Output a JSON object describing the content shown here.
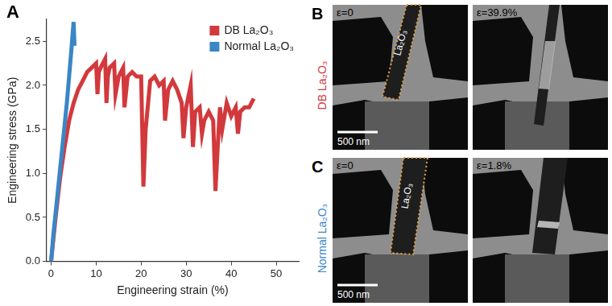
{
  "chart_data": {
    "type": "line",
    "panel_label": "A",
    "x_label": "Engineering strain (%)",
    "y_label": "Engineering stress (GPa)",
    "xlim": [
      -1,
      55
    ],
    "xticks": [
      0,
      10,
      20,
      30,
      40,
      50
    ],
    "ylim": [
      0,
      2.75
    ],
    "yticks": [
      {
        "value": 0,
        "label": "0.0"
      },
      0.5,
      {
        "value": 1,
        "label": "1.0"
      },
      1.5,
      {
        "value": 2,
        "label": "2.0"
      },
      2.5
    ],
    "grid": false,
    "legend": "upper right",
    "marker": "none",
    "series": [
      {
        "name": "DB La₂O₃",
        "color": "#d2393c",
        "x": [
          0,
          1,
          2,
          3,
          4,
          5,
          6,
          7,
          8,
          9,
          10,
          10.3,
          10.6,
          11,
          12,
          12.3,
          12.6,
          13,
          14,
          14.3,
          15,
          16,
          16.3,
          17,
          18,
          19,
          20,
          20.5,
          21,
          22,
          23,
          24,
          25,
          25.3,
          26,
          27,
          28,
          29,
          29.4,
          30,
          31,
          31.5,
          32,
          33,
          33.5,
          34,
          35,
          36,
          36.5,
          37,
          37.5,
          38,
          39,
          40,
          41,
          41.5,
          42,
          43,
          44,
          45
        ],
        "values": [
          0,
          0.5,
          0.95,
          1.3,
          1.6,
          1.8,
          1.95,
          2.05,
          2.15,
          2.2,
          2.25,
          1.9,
          2.15,
          2.2,
          2.3,
          1.8,
          2.1,
          2.2,
          2.25,
          1.9,
          2.1,
          2.2,
          1.75,
          2.1,
          2.15,
          2.1,
          2.1,
          0.85,
          1.5,
          2.05,
          2.1,
          2.0,
          2.05,
          1.6,
          1.95,
          2.05,
          1.95,
          1.8,
          1.4,
          1.75,
          2.0,
          1.3,
          1.7,
          1.75,
          1.45,
          1.6,
          1.7,
          1.6,
          0.8,
          1.3,
          1.75,
          1.5,
          1.8,
          1.65,
          1.75,
          1.45,
          1.7,
          1.75,
          1.75,
          1.85
        ]
      },
      {
        "name": "Normal La₂O₃",
        "color": "#3a86c6",
        "x": [
          0,
          0.5,
          1,
          1.5,
          2,
          2.5,
          3,
          3.5,
          4,
          4.5,
          4.8,
          5,
          5.2
        ],
        "values": [
          0,
          0.3,
          0.55,
          0.8,
          1.05,
          1.3,
          1.55,
          1.8,
          2.1,
          2.4,
          2.6,
          2.72,
          2.45
        ]
      }
    ]
  },
  "image_panels": [
    {
      "label": "B",
      "row_label": "DB La₂O₃",
      "color": "#d2393c",
      "specimen_label": "La₂O₃",
      "scale_bar": "500 nm",
      "frames": [
        {
          "strain_label": "ε=0"
        },
        {
          "strain_label": "ε=39.9%"
        }
      ]
    },
    {
      "label": "C",
      "row_label": "Normal La₂O₃",
      "color": "#3a86c6",
      "specimen_label": "La₂O₃",
      "scale_bar": "500 nm",
      "frames": [
        {
          "strain_label": "ε=0"
        },
        {
          "strain_label": "ε=1.8%"
        }
      ]
    }
  ]
}
